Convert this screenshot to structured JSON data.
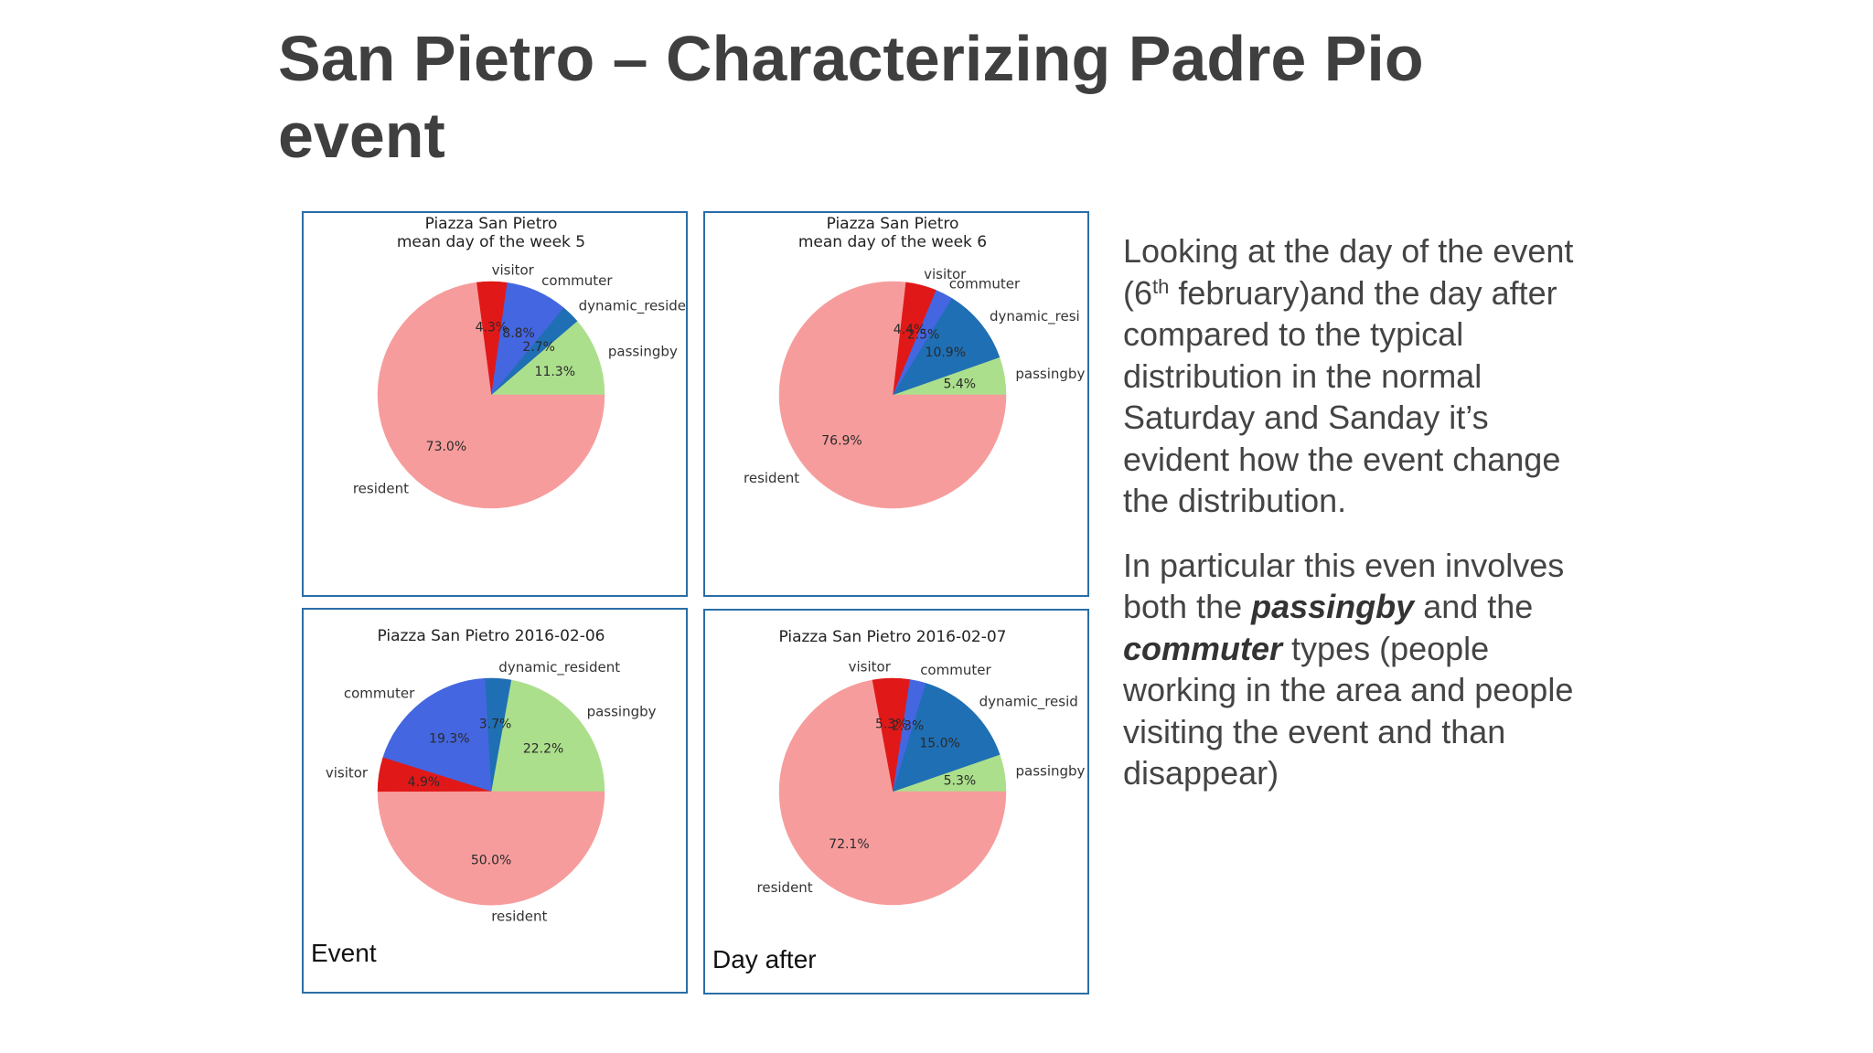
{
  "slide": {
    "title_line1": "San Pietro – Characterizing Padre Pio",
    "title_line2": "event"
  },
  "captions": {
    "event": "Event",
    "day_after": "Day after"
  },
  "description": {
    "p1_before_sup": "Looking at the day of the event (6",
    "p1_sup": "th",
    "p1_after_sup": " february)and the day after compared to the typical distribution in the normal Saturday and Sanday it’s evident how the event change the distribution.",
    "p2_part1": "In particular this even involves both the ",
    "p2_em1": "passingby",
    "p2_part2": " and the ",
    "p2_em2": "commuter",
    "p2_part3": " types (people working in the area and people visiting the event and than disappear)"
  },
  "colors": {
    "resident": "#f79c9c",
    "passingby": "#acdf8c",
    "dynamic_resident": "#1f6fb4",
    "commuter": "#4466e0",
    "visitor": "#e01818",
    "panel_border": "#2a6ea6"
  },
  "chart_data": [
    {
      "type": "pie",
      "title_lines": [
        "Piazza San Pietro",
        "mean day of the week 5"
      ],
      "categories": [
        "passingby",
        "dynamic_resident",
        "commuter",
        "visitor",
        "resident"
      ],
      "labels": [
        "passingby",
        "dynamic_reside",
        "commuter",
        "visitor",
        "resident"
      ],
      "values": [
        11.3,
        2.7,
        8.8,
        4.3,
        73.0
      ],
      "pct_labels": [
        "11.3%",
        "2.7%",
        "8.8%",
        "4.3%",
        "73.0%"
      ]
    },
    {
      "type": "pie",
      "title_lines": [
        "Piazza San Pietro",
        "mean day of the week 6"
      ],
      "categories": [
        "passingby",
        "dynamic_resident",
        "commuter",
        "visitor",
        "resident"
      ],
      "labels": [
        "passingby",
        "dynamic_resi",
        "commuter",
        "visitor",
        "resident"
      ],
      "values": [
        5.4,
        10.9,
        2.5,
        4.4,
        76.9
      ],
      "pct_labels": [
        "5.4%",
        "10.9%",
        "2.5%",
        "4.4%",
        "76.9%"
      ]
    },
    {
      "type": "pie",
      "title_lines": [
        "Piazza San Pietro 2016-02-06"
      ],
      "categories": [
        "passingby",
        "dynamic_resident",
        "commuter",
        "visitor",
        "resident"
      ],
      "labels": [
        "passingby",
        "dynamic_resident",
        "commuter",
        "visitor",
        "resident"
      ],
      "values": [
        22.2,
        3.7,
        19.3,
        4.9,
        50.0
      ],
      "pct_labels": [
        "22.2%",
        "3.7%",
        "19.3%",
        "4.9%",
        "50.0%"
      ]
    },
    {
      "type": "pie",
      "title_lines": [
        "Piazza San Pietro 2016-02-07"
      ],
      "categories": [
        "passingby",
        "dynamic_resident",
        "commuter",
        "visitor",
        "resident"
      ],
      "labels": [
        "passingby",
        "dynamic_resid",
        "commuter",
        "visitor",
        "resident"
      ],
      "values": [
        5.3,
        15.0,
        2.3,
        5.3,
        72.1
      ],
      "pct_labels": [
        "5.3%",
        "15.0%",
        "2.3%",
        "5.3%",
        "72.1%"
      ]
    }
  ]
}
